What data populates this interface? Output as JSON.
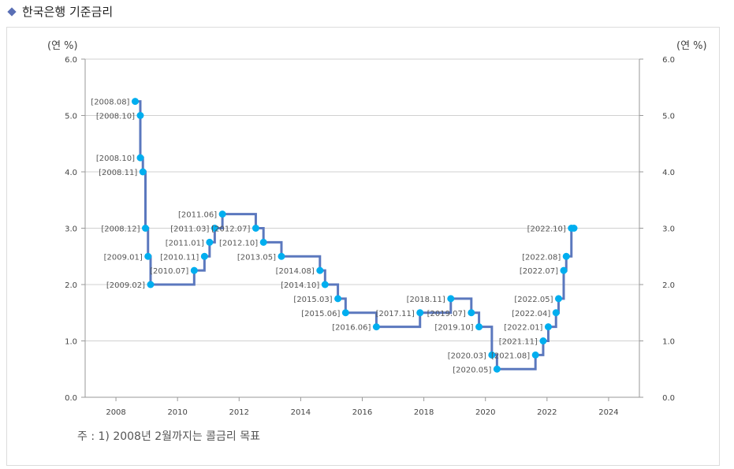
{
  "title": "한국은행 기준금리",
  "note": "주 : 1) 2008년 2월까지는 콜금리 목표",
  "chart_data": {
    "type": "line",
    "step": true,
    "ylabel_left": "(연 %)",
    "ylabel_right": "(연 %)",
    "ylim": [
      0,
      6
    ],
    "yticks": [
      "0.0",
      "1.0",
      "2.0",
      "3.0",
      "4.0",
      "5.0",
      "6.0"
    ],
    "xlim": [
      2007,
      2025
    ],
    "xticks": [
      "2008",
      "2010",
      "2012",
      "2014",
      "2016",
      "2018",
      "2020",
      "2022",
      "2024"
    ],
    "grid": true,
    "line_color": "#5b78be",
    "point_color": "#00aeef",
    "points": [
      {
        "label": "[2008.08]",
        "date": "2008.08",
        "value": 5.25
      },
      {
        "label": "[2008.10]",
        "date": "2008.10",
        "value": 5.0
      },
      {
        "label": "[2008.10]",
        "date": "2008.10",
        "value": 4.25
      },
      {
        "label": "[2008.11]",
        "date": "2008.11",
        "value": 4.0
      },
      {
        "label": "[2008.12]",
        "date": "2008.12",
        "value": 3.0
      },
      {
        "label": "[2009.01]",
        "date": "2009.01",
        "value": 2.5
      },
      {
        "label": "[2009.02]",
        "date": "2009.02",
        "value": 2.0
      },
      {
        "label": "[2010.07]",
        "date": "2010.07",
        "value": 2.25
      },
      {
        "label": "[2010.11]",
        "date": "2010.11",
        "value": 2.5
      },
      {
        "label": "[2011.01]",
        "date": "2011.01",
        "value": 2.75
      },
      {
        "label": "[2011.03]",
        "date": "2011.03",
        "value": 3.0
      },
      {
        "label": "[2011.06]",
        "date": "2011.06",
        "value": 3.25
      },
      {
        "label": "[2012.07]",
        "date": "2012.07",
        "value": 3.0
      },
      {
        "label": "[2012.10]",
        "date": "2012.10",
        "value": 2.75
      },
      {
        "label": "[2013.05]",
        "date": "2013.05",
        "value": 2.5
      },
      {
        "label": "[2014.08]",
        "date": "2014.08",
        "value": 2.25
      },
      {
        "label": "[2014.10]",
        "date": "2014.10",
        "value": 2.0
      },
      {
        "label": "[2015.03]",
        "date": "2015.03",
        "value": 1.75
      },
      {
        "label": "[2015.06]",
        "date": "2015.06",
        "value": 1.5
      },
      {
        "label": "[2016.06]",
        "date": "2016.06",
        "value": 1.25
      },
      {
        "label": "[2017.11]",
        "date": "2017.11",
        "value": 1.5
      },
      {
        "label": "[2018.11]",
        "date": "2018.11",
        "value": 1.75
      },
      {
        "label": "[2019.07]",
        "date": "2019.07",
        "value": 1.5
      },
      {
        "label": "[2019.10]",
        "date": "2019.10",
        "value": 1.25
      },
      {
        "label": "[2020.03]",
        "date": "2020.03",
        "value": 0.75
      },
      {
        "label": "[2020.05]",
        "date": "2020.05",
        "value": 0.5
      },
      {
        "label": "[2021.08]",
        "date": "2021.08",
        "value": 0.75
      },
      {
        "label": "[2021.11]",
        "date": "2021.11",
        "value": 1.0
      },
      {
        "label": "[2022.01]",
        "date": "2022.01",
        "value": 1.25
      },
      {
        "label": "[2022.04]",
        "date": "2022.04",
        "value": 1.5
      },
      {
        "label": "[2022.05]",
        "date": "2022.05",
        "value": 1.75
      },
      {
        "label": "[2022.07]",
        "date": "2022.07",
        "value": 2.25
      },
      {
        "label": "[2022.08]",
        "date": "2022.08",
        "value": 2.5
      },
      {
        "label": "[2022.10]",
        "date": "2022.10",
        "value": 3.0
      },
      {
        "label": "",
        "date": "2022.11",
        "value": 3.0
      }
    ]
  }
}
